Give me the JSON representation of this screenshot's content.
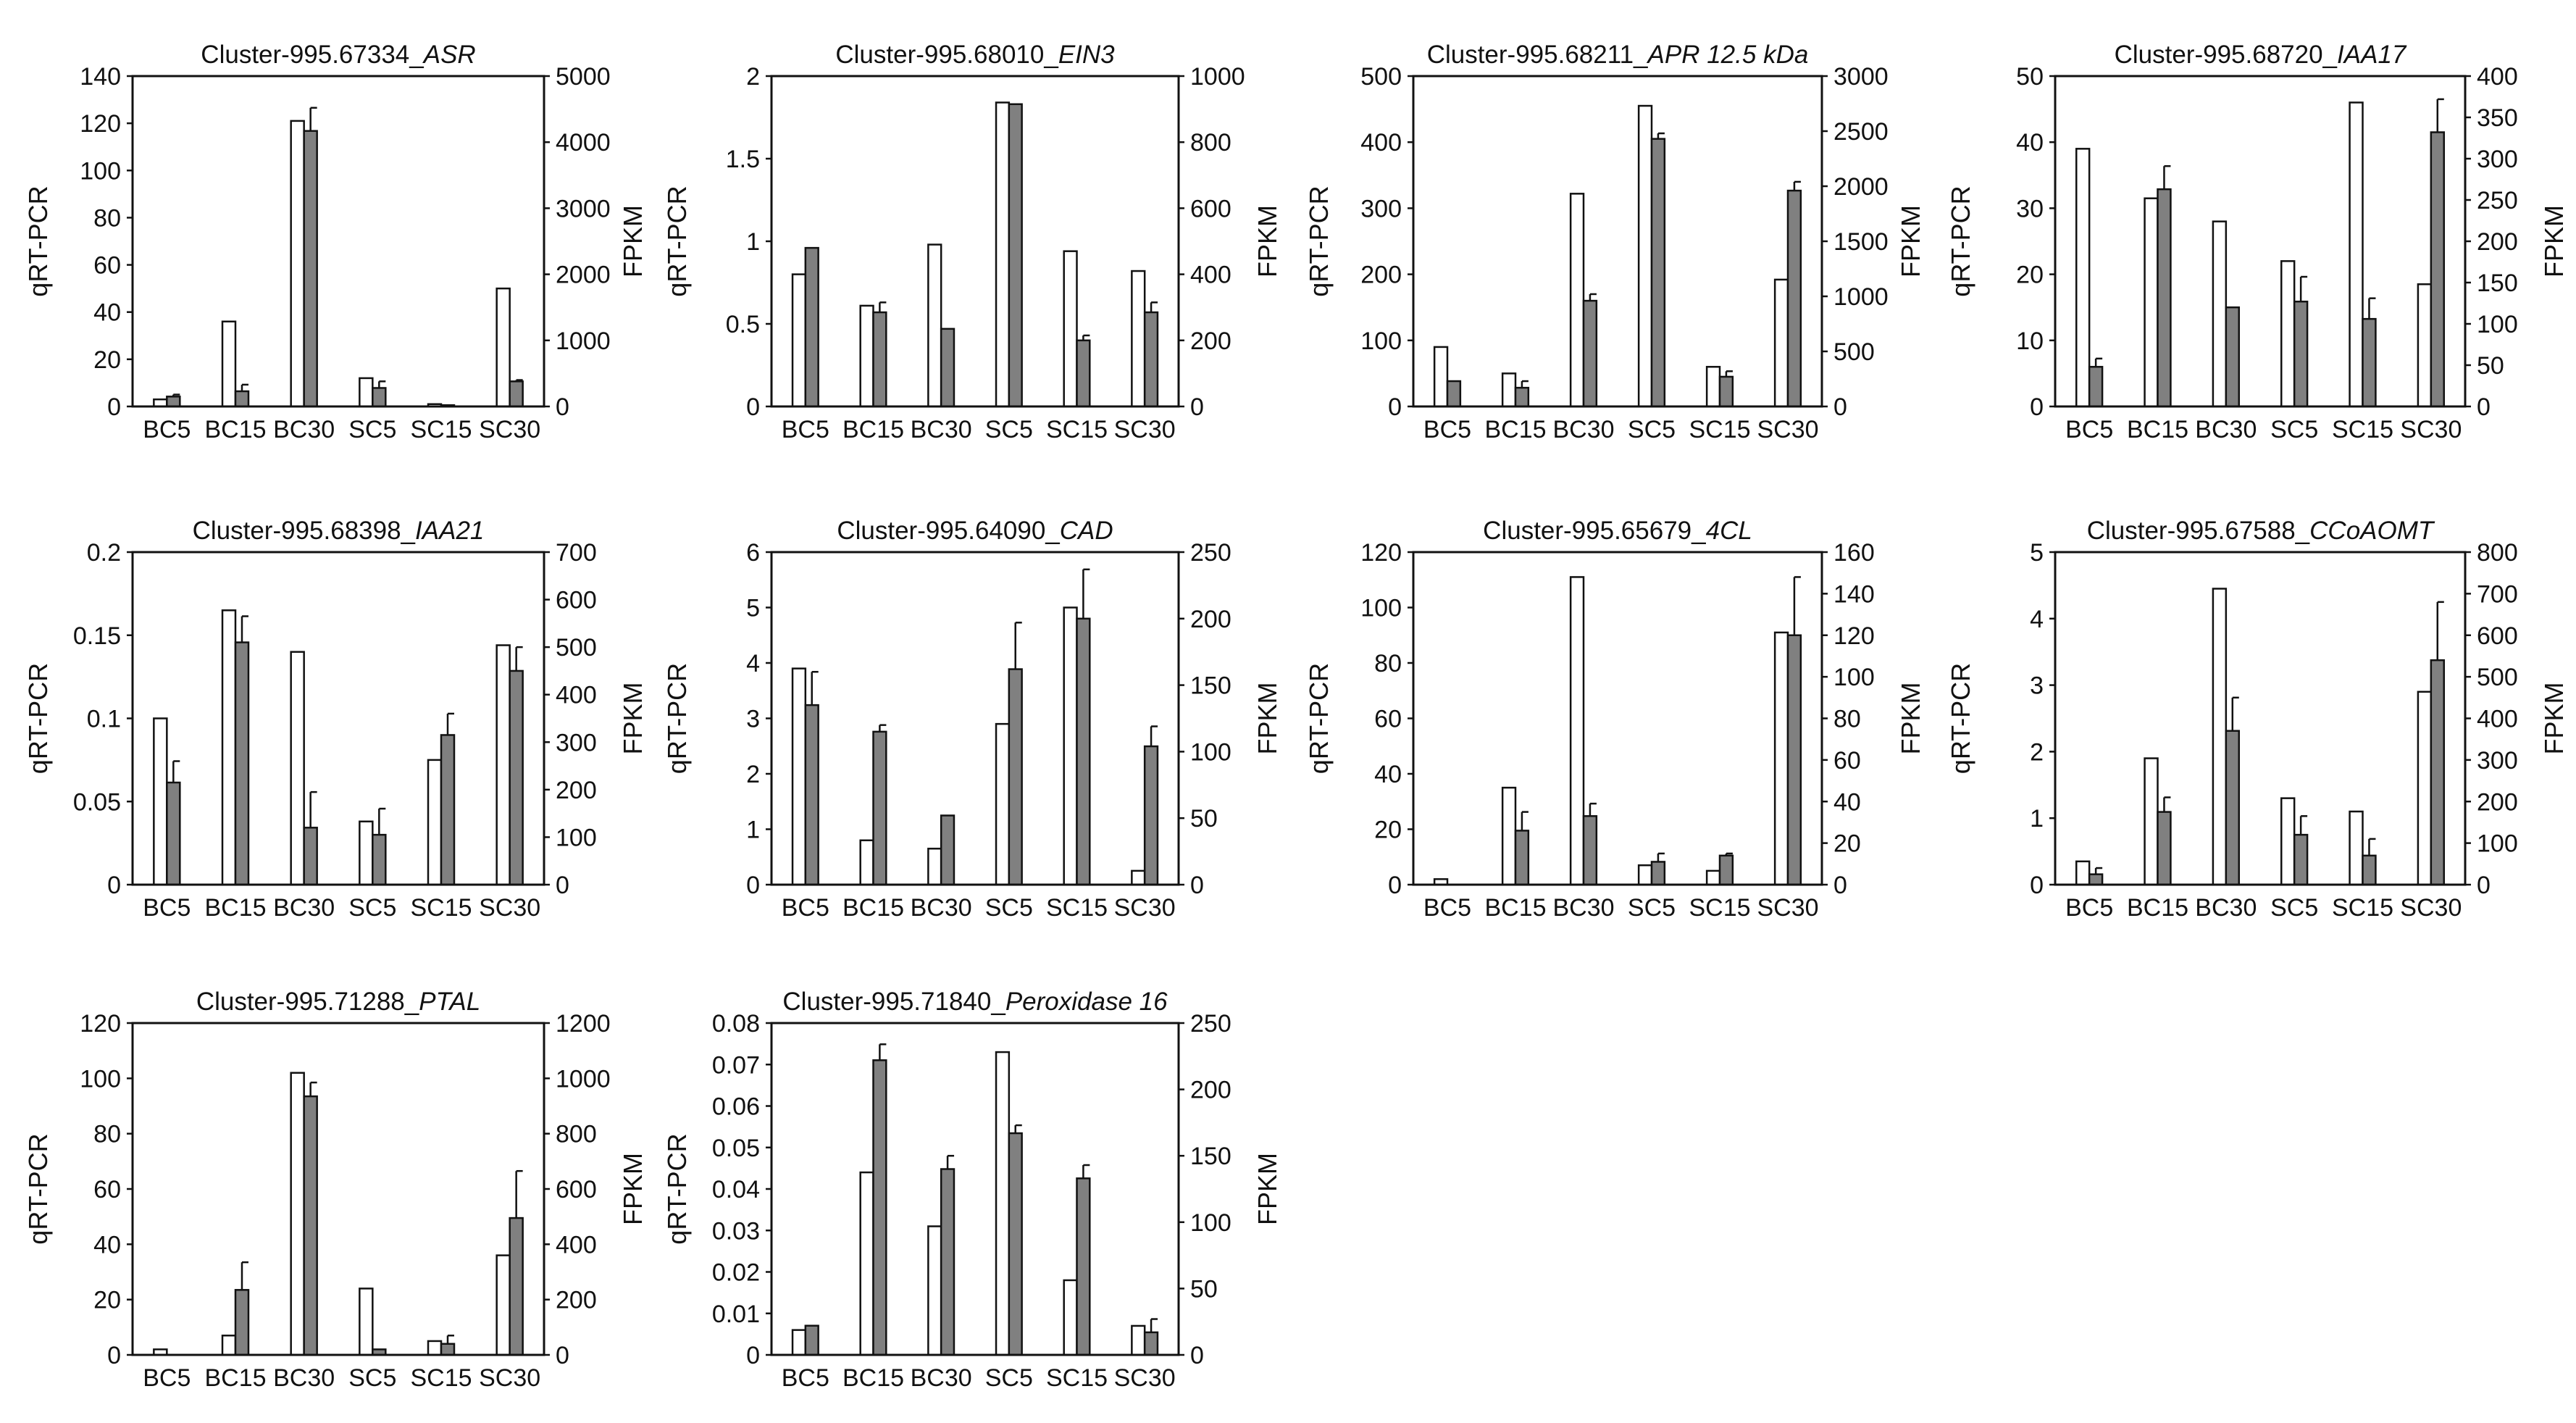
{
  "categories": [
    "BC5",
    "BC15",
    "BC30",
    "SC5",
    "SC15",
    "SC30"
  ],
  "left_axis_label": "qRT-PCR",
  "right_axis_label": "FPKM",
  "colors": {
    "qrt_bar": "#ffffff",
    "fpkm_bar": "#808080",
    "outline": "#111111"
  },
  "chart_data": [
    {
      "type": "bar",
      "title_prefix": "Cluster-995.67334_",
      "title_gene": "ASR",
      "left_ticks": [
        "0",
        "20",
        "40",
        "60",
        "80",
        "100",
        "120",
        "140"
      ],
      "left_max": 140,
      "right_ticks": [
        "0",
        "1000",
        "2000",
        "3000",
        "4000",
        "5000"
      ],
      "right_max": 5000,
      "series": [
        {
          "name": "qRT-PCR",
          "values": [
            3,
            36,
            121,
            12,
            1,
            50
          ]
        },
        {
          "name": "FPKM",
          "values": [
            150,
            230,
            4170,
            280,
            20,
            380
          ],
          "errors": [
            30,
            100,
            350,
            100,
            0,
            20
          ]
        }
      ]
    },
    {
      "type": "bar",
      "title_prefix": "Cluster-995.68010_",
      "title_gene": "EIN3",
      "left_ticks": [
        "0",
        "0.5",
        "1",
        "1.5",
        "2"
      ],
      "left_max": 2,
      "right_ticks": [
        "0",
        "200",
        "400",
        "600",
        "800",
        "1000"
      ],
      "right_max": 1000,
      "series": [
        {
          "name": "qRT-PCR",
          "values": [
            0.8,
            0.61,
            0.98,
            1.84,
            0.94,
            0.82
          ]
        },
        {
          "name": "FPKM",
          "values": [
            480,
            285,
            235,
            915,
            200,
            285
          ],
          "errors": [
            0,
            30,
            0,
            0,
            15,
            30
          ]
        }
      ]
    },
    {
      "type": "bar",
      "title_prefix": "Cluster-995.68211_",
      "title_gene": "APR 12.5 kDa",
      "left_ticks": [
        "0",
        "100",
        "200",
        "300",
        "400",
        "500"
      ],
      "left_max": 500,
      "right_ticks": [
        "0",
        "500",
        "1000",
        "1500",
        "2000",
        "2500",
        "3000"
      ],
      "right_max": 3000,
      "series": [
        {
          "name": "qRT-PCR",
          "values": [
            90,
            50,
            322,
            455,
            60,
            192
          ]
        },
        {
          "name": "FPKM",
          "values": [
            230,
            170,
            960,
            2430,
            270,
            1960
          ],
          "errors": [
            0,
            60,
            60,
            50,
            50,
            80
          ]
        }
      ]
    },
    {
      "type": "bar",
      "title_prefix": "Cluster-995.68720_",
      "title_gene": "IAA17",
      "left_ticks": [
        "0",
        "10",
        "20",
        "30",
        "40",
        "50"
      ],
      "left_max": 50,
      "right_ticks": [
        "0",
        "50",
        "100",
        "150",
        "200",
        "250",
        "300",
        "350",
        "400"
      ],
      "right_max": 400,
      "series": [
        {
          "name": "qRT-PCR",
          "values": [
            39,
            31.5,
            28,
            22,
            46,
            18.5
          ]
        },
        {
          "name": "FPKM",
          "values": [
            48,
            263,
            120,
            127,
            106,
            332
          ],
          "errors": [
            10,
            28,
            0,
            30,
            25,
            40
          ]
        }
      ]
    },
    {
      "type": "bar",
      "title_prefix": "Cluster-995.68398_",
      "title_gene": "IAA21",
      "left_ticks": [
        "0",
        "0.05",
        "0.1",
        "0.15",
        "0.2"
      ],
      "left_max": 0.2,
      "right_ticks": [
        "0",
        "100",
        "200",
        "300",
        "400",
        "500",
        "600",
        "700"
      ],
      "right_max": 700,
      "series": [
        {
          "name": "qRT-PCR",
          "values": [
            0.1,
            0.165,
            0.14,
            0.038,
            0.075,
            0.144
          ]
        },
        {
          "name": "FPKM",
          "values": [
            215,
            510,
            120,
            105,
            315,
            450
          ],
          "errors": [
            45,
            55,
            75,
            55,
            45,
            50
          ]
        }
      ]
    },
    {
      "type": "bar",
      "title_prefix": "Cluster-995.64090_",
      "title_gene": "CAD",
      "left_ticks": [
        "0",
        "1",
        "2",
        "3",
        "4",
        "5",
        "6"
      ],
      "left_max": 6,
      "right_ticks": [
        "0",
        "50",
        "100",
        "150",
        "200",
        "250"
      ],
      "right_max": 250,
      "series": [
        {
          "name": "qRT-PCR",
          "values": [
            3.9,
            0.8,
            0.65,
            2.9,
            5,
            0.25
          ]
        },
        {
          "name": "FPKM",
          "values": [
            135,
            115,
            52,
            162,
            200,
            104
          ],
          "errors": [
            25,
            5,
            0,
            35,
            37,
            15
          ]
        }
      ]
    },
    {
      "type": "bar",
      "title_prefix": "Cluster-995.65679_",
      "title_gene": "4CL",
      "left_ticks": [
        "0",
        "20",
        "40",
        "60",
        "80",
        "100",
        "120"
      ],
      "left_max": 120,
      "right_ticks": [
        "0",
        "20",
        "40",
        "60",
        "80",
        "100",
        "120",
        "140",
        "160"
      ],
      "right_max": 160,
      "series": [
        {
          "name": "qRT-PCR",
          "values": [
            2,
            35,
            111,
            7,
            5,
            91
          ]
        },
        {
          "name": "FPKM",
          "values": [
            0,
            26,
            33,
            11,
            14,
            120
          ],
          "errors": [
            0,
            9,
            6,
            4,
            1,
            28
          ]
        }
      ]
    },
    {
      "type": "bar",
      "title_prefix": "Cluster-995.67588_",
      "title_gene": "CCoAOMT",
      "left_ticks": [
        "0",
        "1",
        "2",
        "3",
        "4",
        "5"
      ],
      "left_max": 5,
      "right_ticks": [
        "0",
        "100",
        "200",
        "300",
        "400",
        "500",
        "600",
        "700",
        "800"
      ],
      "right_max": 800,
      "series": [
        {
          "name": "qRT-PCR",
          "values": [
            0.35,
            1.9,
            4.45,
            1.3,
            1.1,
            2.9
          ]
        },
        {
          "name": "FPKM",
          "values": [
            25,
            175,
            370,
            120,
            70,
            540
          ],
          "errors": [
            15,
            35,
            80,
            45,
            40,
            140
          ]
        }
      ]
    },
    {
      "type": "bar",
      "title_prefix": "Cluster-995.71288_",
      "title_gene": "PTAL",
      "left_ticks": [
        "0",
        "20",
        "40",
        "60",
        "80",
        "100",
        "120"
      ],
      "left_max": 120,
      "right_ticks": [
        "0",
        "200",
        "400",
        "600",
        "800",
        "1000",
        "1200"
      ],
      "right_max": 1200,
      "series": [
        {
          "name": "qRT-PCR",
          "values": [
            2,
            7,
            102,
            24,
            5,
            36
          ]
        },
        {
          "name": "FPKM",
          "values": [
            0,
            235,
            935,
            20,
            40,
            495
          ],
          "errors": [
            0,
            100,
            50,
            0,
            30,
            170
          ]
        }
      ]
    },
    {
      "type": "bar",
      "title_prefix": "Cluster-995.71840_",
      "title_gene": "Peroxidase 16",
      "left_ticks": [
        "0",
        "0.01",
        "0.02",
        "0.03",
        "0.04",
        "0.05",
        "0.06",
        "0.07",
        "0.08"
      ],
      "left_max": 0.08,
      "right_ticks": [
        "0",
        "50",
        "100",
        "150",
        "200",
        "250"
      ],
      "right_max": 250,
      "series": [
        {
          "name": "qRT-PCR",
          "values": [
            0.006,
            0.044,
            0.031,
            0.073,
            0.018,
            0.007
          ]
        },
        {
          "name": "FPKM",
          "values": [
            22,
            222,
            140,
            167,
            133,
            17
          ],
          "errors": [
            0,
            12,
            10,
            6,
            10,
            10
          ]
        }
      ]
    }
  ]
}
